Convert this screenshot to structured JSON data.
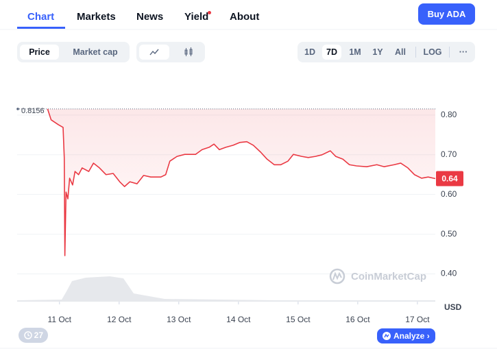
{
  "nav": {
    "tabs": [
      "Chart",
      "Markets",
      "News",
      "Yield",
      "About"
    ],
    "buy_button": "Buy ADA"
  },
  "toolbar": {
    "modes": [
      "Price",
      "Market cap"
    ],
    "ranges": [
      "1D",
      "7D",
      "1M",
      "1Y",
      "All"
    ],
    "log": "LOG",
    "more": "···"
  },
  "footer": {
    "badge": "27",
    "analyze": "Analyze"
  },
  "chart_data": {
    "type": "line",
    "watermark": "CoinMarketCap",
    "y_unit": "USD",
    "x": [
      10.8,
      10.86,
      10.98,
      11.06,
      11.08,
      11.09,
      11.11,
      11.14,
      11.17,
      11.22,
      11.26,
      11.32,
      11.38,
      11.49,
      11.57,
      11.67,
      11.78,
      11.9,
      12.01,
      12.09,
      12.18,
      12.3,
      12.41,
      12.53,
      12.7,
      12.78,
      12.85,
      12.97,
      13.1,
      13.28,
      13.39,
      13.51,
      13.59,
      13.68,
      13.79,
      13.91,
      14.02,
      14.14,
      14.25,
      14.37,
      14.48,
      14.6,
      14.71,
      14.83,
      14.92,
      15.06,
      15.17,
      15.29,
      15.4,
      15.54,
      15.63,
      15.75,
      15.86,
      15.98,
      16.15,
      16.32,
      16.44,
      16.61,
      16.72,
      16.84,
      16.95,
      17.07,
      17.18,
      17.3
    ],
    "series": [
      {
        "name": "Price",
        "color": "#ea3943",
        "values": [
          0.8156,
          0.788,
          0.776,
          0.769,
          0.693,
          0.446,
          0.606,
          0.589,
          0.641,
          0.624,
          0.658,
          0.65,
          0.667,
          0.658,
          0.679,
          0.667,
          0.65,
          0.653,
          0.632,
          0.62,
          0.632,
          0.627,
          0.648,
          0.644,
          0.644,
          0.65,
          0.684,
          0.696,
          0.701,
          0.701,
          0.713,
          0.719,
          0.727,
          0.713,
          0.719,
          0.724,
          0.731,
          0.733,
          0.724,
          0.707,
          0.689,
          0.675,
          0.675,
          0.684,
          0.701,
          0.696,
          0.693,
          0.696,
          0.7,
          0.71,
          0.696,
          0.689,
          0.675,
          0.672,
          0.67,
          0.675,
          0.67,
          0.675,
          0.679,
          0.667,
          0.65,
          0.641,
          0.644,
          0.64
        ]
      }
    ],
    "xlim": [
      10.29,
      17.3
    ],
    "xticks": [
      {
        "value": 11,
        "label": "11 Oct"
      },
      {
        "value": 12,
        "label": "12 Oct"
      },
      {
        "value": 13,
        "label": "13 Oct"
      },
      {
        "value": 14,
        "label": "14 Oct"
      },
      {
        "value": 15,
        "label": "15 Oct"
      },
      {
        "value": 16,
        "label": "16 Oct"
      },
      {
        "value": 17,
        "label": "17 Oct"
      }
    ],
    "ylim": [
      0.33,
      0.9
    ],
    "yticks": [
      {
        "value": 0.4,
        "label": "0.40"
      },
      {
        "value": 0.5,
        "label": "0.50"
      },
      {
        "value": 0.6,
        "label": "0.60"
      },
      {
        "value": 0.7,
        "label": "0.70"
      },
      {
        "value": 0.8,
        "label": "0.80"
      }
    ],
    "grid": true
  }
}
